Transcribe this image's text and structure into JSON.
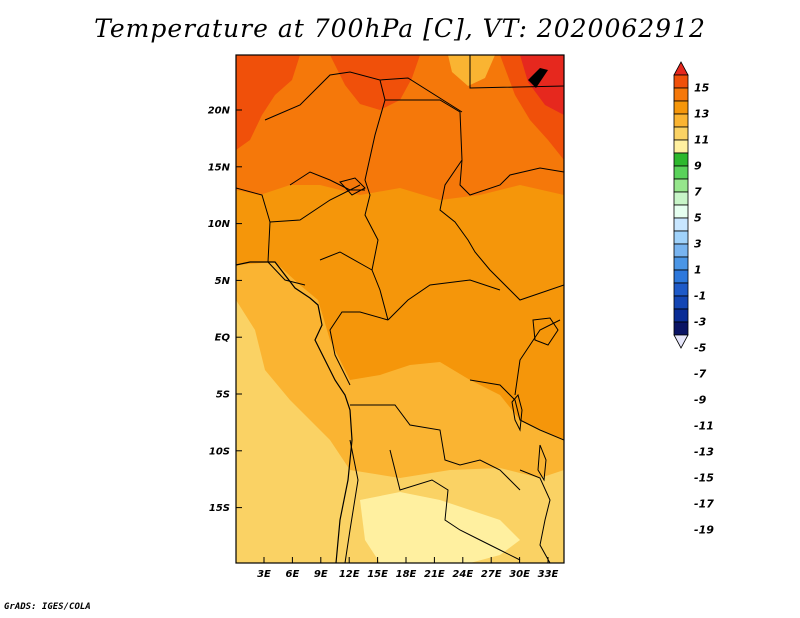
{
  "title": "Temperature at 700hPa [C], VT: 2020062912",
  "credit": "GrADS: IGES/COLA",
  "map": {
    "lat_labels": [
      "20N",
      "15N",
      "10N",
      "5N",
      "EQ",
      "5S",
      "10S",
      "15S"
    ],
    "lon_labels": [
      "3E",
      "6E",
      "9E",
      "12E",
      "15E",
      "18E",
      "21E",
      "24E",
      "27E",
      "30E",
      "33E"
    ]
  },
  "colorbar": {
    "levels": [
      "15",
      "13",
      "11",
      "9",
      "7",
      "5",
      "3",
      "1",
      "-1",
      "-3",
      "-5",
      "-7",
      "-9",
      "-11",
      "-13",
      "-15",
      "-17",
      "-19"
    ],
    "colors": [
      "#e6281e",
      "#f0500a",
      "#f5780a",
      "#f5960a",
      "#fab432",
      "#fad264",
      "#fff0a0",
      "#2db82d",
      "#5ad25a",
      "#96e68c",
      "#c8f5c8",
      "#e6fff0",
      "#c8e6ff",
      "#a0d2fa",
      "#78b4f0",
      "#4b96e6",
      "#2d78dc",
      "#1e5ac8",
      "#1446b4",
      "#0a2d96",
      "#0a1464",
      "#e6e6fa"
    ]
  }
}
